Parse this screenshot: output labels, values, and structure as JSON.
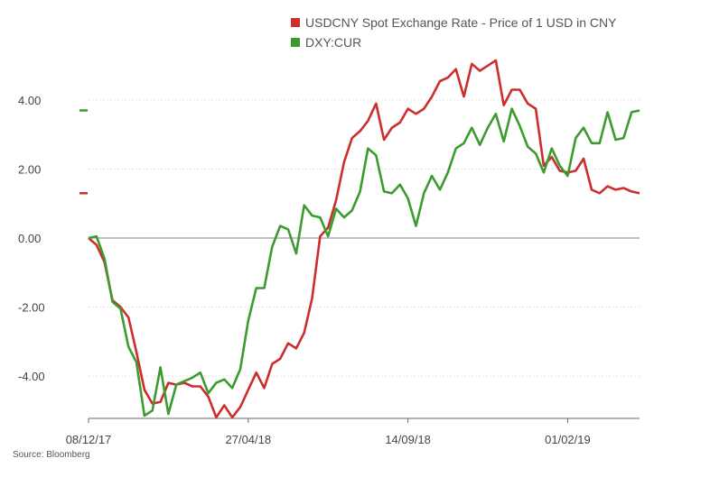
{
  "source": "Source: Bloomberg",
  "chart_data": {
    "type": "line",
    "title": "",
    "xlabel": "",
    "ylabel": "",
    "ylim": [
      -5.2,
      5.5
    ],
    "y_ticks": [
      "4.00",
      "2.00",
      "0.00",
      "-2.00",
      "-4.00"
    ],
    "y_tick_values": [
      4,
      2,
      0,
      -2,
      -4
    ],
    "x_ticks": [
      {
        "label": "08/12/17",
        "index": 0
      },
      {
        "label": "27/04/18",
        "index": 20
      },
      {
        "label": "14/09/18",
        "index": 40
      },
      {
        "label": "01/02/19",
        "index": 60
      }
    ],
    "grid": true,
    "legend": "top-right",
    "end_markers": true,
    "series": [
      {
        "name": "USDCNY Spot Exchange Rate - Price of 1 USD in CNY",
        "color": "#cc2e2e",
        "values": [
          0.0,
          -0.2,
          -0.7,
          -1.8,
          -2.0,
          -2.3,
          -3.3,
          -4.4,
          -4.8,
          -4.75,
          -4.2,
          -4.25,
          -4.2,
          -4.3,
          -4.3,
          -4.6,
          -5.2,
          -4.85,
          -5.2,
          -4.9,
          -4.4,
          -3.9,
          -4.35,
          -3.65,
          -3.5,
          -3.05,
          -3.2,
          -2.75,
          -1.75,
          0.05,
          0.3,
          1.1,
          2.2,
          2.9,
          3.1,
          3.4,
          3.9,
          2.85,
          3.2,
          3.35,
          3.75,
          3.6,
          3.75,
          4.1,
          4.55,
          4.65,
          4.9,
          4.1,
          5.05,
          4.85,
          5.0,
          5.15,
          3.85,
          4.3,
          4.3,
          3.9,
          3.75,
          2.1,
          2.35,
          1.95,
          1.9,
          1.95,
          2.3,
          1.4,
          1.3,
          1.5,
          1.4,
          1.45,
          1.35,
          1.3
        ]
      },
      {
        "name": "DXY:CUR",
        "color": "#3c9b2e",
        "values": [
          0.0,
          0.05,
          -0.6,
          -1.85,
          -2.05,
          -3.15,
          -3.6,
          -5.15,
          -5.0,
          -3.75,
          -5.1,
          -4.25,
          -4.15,
          -4.05,
          -3.9,
          -4.5,
          -4.2,
          -4.1,
          -4.35,
          -3.8,
          -2.4,
          -1.45,
          -1.45,
          -0.25,
          0.35,
          0.25,
          -0.45,
          0.95,
          0.65,
          0.6,
          0.05,
          0.85,
          0.6,
          0.8,
          1.35,
          2.6,
          2.4,
          1.35,
          1.3,
          1.55,
          1.15,
          0.35,
          1.3,
          1.8,
          1.4,
          1.9,
          2.6,
          2.75,
          3.2,
          2.7,
          3.2,
          3.6,
          2.8,
          3.75,
          3.25,
          2.65,
          2.45,
          1.9,
          2.6,
          2.1,
          1.8,
          2.9,
          3.2,
          2.75,
          2.75,
          3.65,
          2.85,
          2.9,
          3.65,
          3.7
        ]
      }
    ]
  }
}
